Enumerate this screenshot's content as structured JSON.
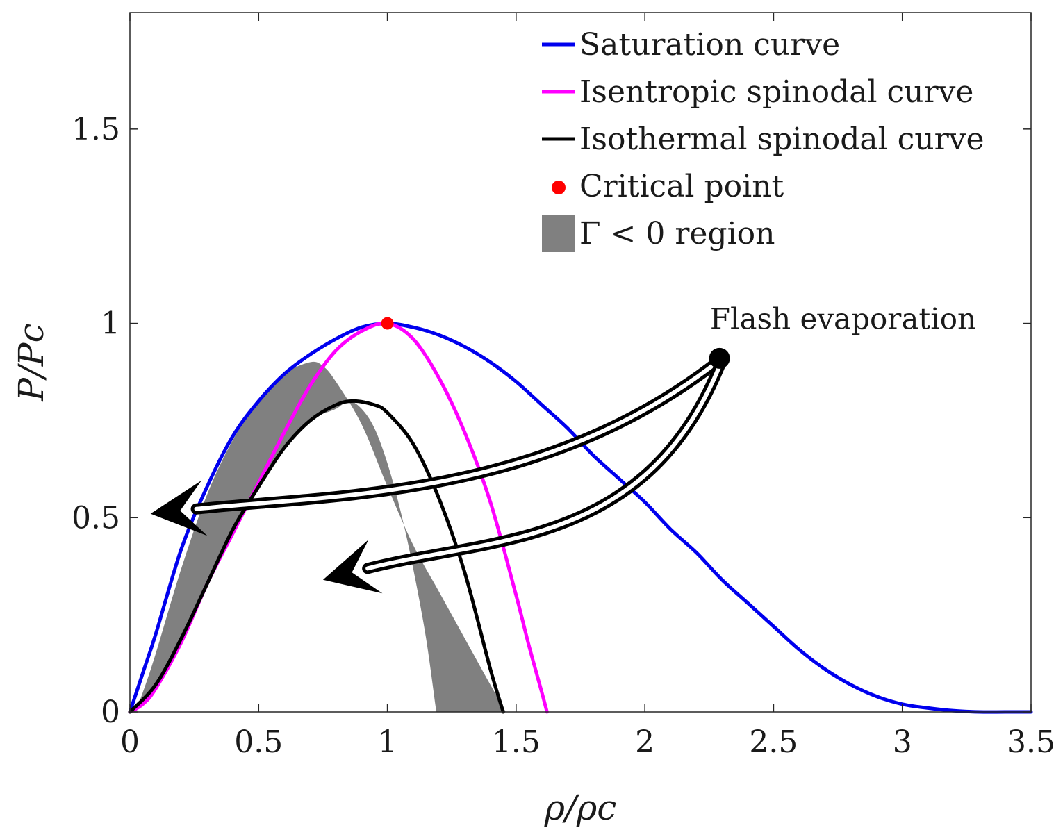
{
  "chart_data": {
    "type": "line",
    "xlabel": "ρ/ρc",
    "ylabel": "P/Pc",
    "xlim": [
      0,
      3.5
    ],
    "ylim": [
      0,
      1.8
    ],
    "xticks": [
      0,
      0.5,
      1,
      1.5,
      2,
      2.5,
      3,
      3.5
    ],
    "xtick_labels": [
      "0",
      "0.5",
      "1",
      "1.5",
      "2",
      "2.5",
      "3",
      "3.5"
    ],
    "yticks": [
      0,
      0.5,
      1,
      1.5
    ],
    "ytick_labels": [
      "0",
      "0.5",
      "1",
      "1.5"
    ],
    "grid": false,
    "legend_position": "top-right",
    "series": [
      {
        "name": "Saturation curve",
        "color": "#0000ee",
        "x": [
          0,
          0.05,
          0.1,
          0.2,
          0.3,
          0.4,
          0.5,
          0.6,
          0.7,
          0.8,
          0.9,
          1.0,
          1.1,
          1.2,
          1.3,
          1.4,
          1.5,
          1.6,
          1.7,
          1.8,
          1.9,
          2.0,
          2.1,
          2.2,
          2.3,
          2.4,
          2.5,
          2.6,
          2.7,
          2.8,
          2.9,
          3.0,
          3.1,
          3.2,
          3.3,
          3.4,
          3.5
        ],
        "y": [
          0,
          0.1,
          0.2,
          0.42,
          0.58,
          0.71,
          0.8,
          0.87,
          0.92,
          0.96,
          0.99,
          1.0,
          0.99,
          0.97,
          0.94,
          0.9,
          0.85,
          0.79,
          0.73,
          0.66,
          0.6,
          0.54,
          0.47,
          0.41,
          0.34,
          0.28,
          0.22,
          0.16,
          0.11,
          0.07,
          0.04,
          0.02,
          0.01,
          0.003,
          0.0,
          0.0,
          0.0
        ]
      },
      {
        "name": "Isentropic spinodal curve",
        "color": "#ff00ff",
        "x": [
          0,
          0.05,
          0.1,
          0.2,
          0.3,
          0.4,
          0.5,
          0.6,
          0.7,
          0.8,
          0.9,
          1.0,
          1.1,
          1.2,
          1.3,
          1.4,
          1.5,
          1.55,
          1.6,
          1.62
        ],
        "y": [
          0,
          0.02,
          0.06,
          0.18,
          0.33,
          0.46,
          0.59,
          0.72,
          0.84,
          0.93,
          0.98,
          1.0,
          0.96,
          0.86,
          0.72,
          0.54,
          0.3,
          0.17,
          0.05,
          0.0
        ]
      },
      {
        "name": "Isothermal spinodal curve",
        "color": "#000000",
        "x": [
          0,
          0.1,
          0.2,
          0.3,
          0.4,
          0.5,
          0.6,
          0.7,
          0.8,
          0.87,
          0.95,
          1.0,
          1.1,
          1.2,
          1.3,
          1.4,
          1.45
        ],
        "y": [
          0,
          0.07,
          0.19,
          0.33,
          0.47,
          0.58,
          0.68,
          0.75,
          0.79,
          0.8,
          0.79,
          0.77,
          0.69,
          0.55,
          0.36,
          0.11,
          0.0
        ]
      }
    ],
    "points": [
      {
        "name": "Critical point",
        "color": "#ff0000",
        "x": 1.0,
        "y": 1.0
      },
      {
        "name": "Flash evaporation start",
        "color": "#000000",
        "x": 2.29,
        "y": 0.91
      }
    ],
    "regions": [
      {
        "name": "Γ < 0 region",
        "color": "#808080",
        "outer_x": [
          0.02,
          0.05,
          0.1,
          0.2,
          0.3,
          0.4,
          0.5,
          0.6,
          0.7,
          0.75,
          0.8,
          0.9,
          1.0,
          1.1,
          1.2,
          1.3,
          1.4,
          1.46
        ],
        "outer_y": [
          0.0,
          0.05,
          0.15,
          0.37,
          0.56,
          0.7,
          0.8,
          0.87,
          0.9,
          0.89,
          0.85,
          0.74,
          0.58,
          0.43,
          0.31,
          0.19,
          0.07,
          0.0
        ],
        "inner_x": [
          1.19,
          1.15,
          1.1,
          1.05,
          1.0,
          0.95,
          0.9,
          0.85,
          0.8,
          0.7,
          0.6,
          0.5,
          0.4,
          0.3,
          0.2,
          0.1,
          0.05,
          0.02
        ],
        "inner_y": [
          0.0,
          0.19,
          0.37,
          0.52,
          0.64,
          0.73,
          0.78,
          0.8,
          0.78,
          0.75,
          0.68,
          0.58,
          0.47,
          0.33,
          0.19,
          0.07,
          0.02,
          0.0
        ]
      }
    ],
    "arrows": [
      {
        "from": [
          2.28,
          0.9
        ],
        "control1": [
          1.6,
          0.55
        ],
        "control2": [
          0.8,
          0.56
        ],
        "to": [
          0.08,
          0.51
        ]
      },
      {
        "from": [
          2.29,
          0.89
        ],
        "control1": [
          2.0,
          0.42
        ],
        "control2": [
          1.4,
          0.45
        ],
        "to": [
          0.75,
          0.34
        ]
      }
    ],
    "legend": [
      {
        "label": "Saturation curve",
        "kind": "line",
        "color": "#0000ee"
      },
      {
        "label": "Isentropic spinodal curve",
        "kind": "line",
        "color": "#ff00ff"
      },
      {
        "label": "Isothermal spinodal curve",
        "kind": "line",
        "color": "#000000"
      },
      {
        "label": "Critical point",
        "kind": "dot",
        "color": "#ff0000"
      },
      {
        "label": "Γ < 0 region",
        "kind": "patch",
        "color": "#808080"
      }
    ],
    "annotations": [
      {
        "text": "Flash evaporation",
        "x": 2.77,
        "y": 1.0
      }
    ]
  }
}
